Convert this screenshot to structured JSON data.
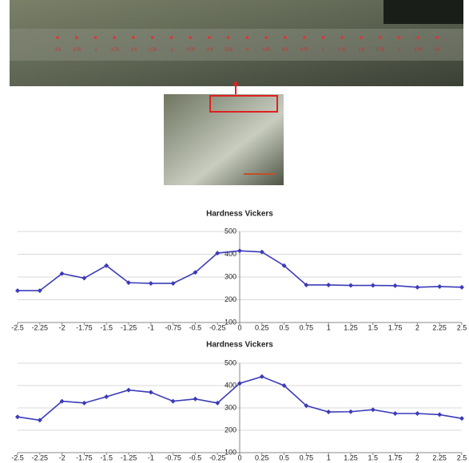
{
  "photo_labels": [
    "-2.5",
    "-2.25",
    "-2",
    "-1.75",
    "-1.5",
    "-1.25",
    "-1",
    "-0.75",
    "-0.5",
    "-0.25",
    "0",
    "0.25",
    "0.5",
    "0.75",
    "1",
    "1.25",
    "1.5",
    "1.75",
    "2",
    "2.25",
    "2.5"
  ],
  "chart_data": [
    {
      "type": "line",
      "title": "Hardness Vickers",
      "x": [
        -2.5,
        -2.25,
        -2,
        -1.75,
        -1.5,
        -1.25,
        -1,
        -0.75,
        -0.5,
        -0.25,
        0,
        0.25,
        0.5,
        0.75,
        1,
        1.25,
        1.5,
        1.75,
        2,
        2.25,
        2.5
      ],
      "values": [
        240,
        240,
        315,
        295,
        350,
        275,
        272,
        272,
        320,
        405,
        415,
        410,
        350,
        265,
        265,
        263,
        263,
        262,
        255,
        258,
        255
      ],
      "color": "#3b3bb8",
      "xlim": [
        -2.5,
        2.5
      ],
      "xticks": [
        -2.5,
        -2.25,
        -2,
        -1.75,
        -1.5,
        -1.25,
        -1,
        -0.75,
        -0.5,
        -0.25,
        0,
        0.25,
        0.5,
        0.75,
        1,
        1.25,
        1.5,
        1.75,
        2,
        2.25,
        2.5
      ],
      "ylim": [
        100,
        500
      ],
      "yticks": [
        100,
        200,
        300,
        400,
        500
      ],
      "grid": true
    },
    {
      "type": "line",
      "title": "Hardness Vickers",
      "x": [
        -2.5,
        -2.25,
        -2,
        -1.75,
        -1.5,
        -1.25,
        -1,
        -0.75,
        -0.5,
        -0.25,
        0,
        0.25,
        0.5,
        0.75,
        1,
        1.25,
        1.5,
        1.75,
        2,
        2.25,
        2.5
      ],
      "values": [
        260,
        245,
        330,
        322,
        350,
        380,
        370,
        330,
        340,
        322,
        410,
        440,
        400,
        310,
        282,
        283,
        292,
        275,
        275,
        270,
        253
      ],
      "color": "#3b3bb8",
      "xlim": [
        -2.5,
        2.5
      ],
      "xticks": [
        -2.5,
        -2.25,
        -2,
        -1.75,
        -1.5,
        -1.25,
        -1,
        -0.75,
        -0.5,
        -0.25,
        0,
        0.25,
        0.5,
        0.75,
        1,
        1.25,
        1.5,
        1.75,
        2,
        2.25,
        2.5
      ],
      "ylim": [
        100,
        500
      ],
      "yticks": [
        100,
        200,
        300,
        400,
        500
      ],
      "grid": true
    }
  ]
}
